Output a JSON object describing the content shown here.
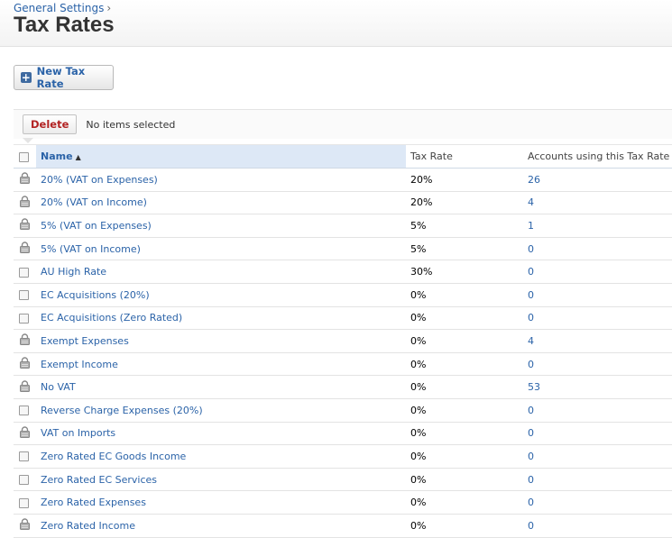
{
  "breadcrumb": {
    "parent": "General Settings",
    "separator": "›"
  },
  "page": {
    "title": "Tax Rates"
  },
  "actions": {
    "new_label": "New Tax Rate",
    "new_icon": "plus-icon"
  },
  "toolbar": {
    "delete_label": "Delete",
    "selection_status": "No items selected"
  },
  "table": {
    "columns": [
      "Name",
      "Tax Rate",
      "Accounts using this Tax Rate"
    ],
    "sort": {
      "column": "Name",
      "direction": "ascending"
    },
    "rows": [
      {
        "name": "20% (VAT on Expenses)",
        "rate": "20%",
        "accounts": "26",
        "locked": true
      },
      {
        "name": "20% (VAT on Income)",
        "rate": "20%",
        "accounts": "4",
        "locked": true
      },
      {
        "name": "5% (VAT on Expenses)",
        "rate": "5%",
        "accounts": "1",
        "locked": true
      },
      {
        "name": "5% (VAT on Income)",
        "rate": "5%",
        "accounts": "0",
        "locked": true
      },
      {
        "name": "AU High Rate",
        "rate": "30%",
        "accounts": "0",
        "locked": false
      },
      {
        "name": "EC Acquisitions (20%)",
        "rate": "0%",
        "accounts": "0",
        "locked": false
      },
      {
        "name": "EC Acquisitions (Zero Rated)",
        "rate": "0%",
        "accounts": "0",
        "locked": false
      },
      {
        "name": "Exempt Expenses",
        "rate": "0%",
        "accounts": "4",
        "locked": true
      },
      {
        "name": "Exempt Income",
        "rate": "0%",
        "accounts": "0",
        "locked": true
      },
      {
        "name": "No VAT",
        "rate": "0%",
        "accounts": "53",
        "locked": true
      },
      {
        "name": "Reverse Charge Expenses (20%)",
        "rate": "0%",
        "accounts": "0",
        "locked": false
      },
      {
        "name": "VAT on Imports",
        "rate": "0%",
        "accounts": "0",
        "locked": true
      },
      {
        "name": "Zero Rated EC Goods Income",
        "rate": "0%",
        "accounts": "0",
        "locked": false
      },
      {
        "name": "Zero Rated EC Services",
        "rate": "0%",
        "accounts": "0",
        "locked": false
      },
      {
        "name": "Zero Rated Expenses",
        "rate": "0%",
        "accounts": "0",
        "locked": false
      },
      {
        "name": "Zero Rated Income",
        "rate": "0%",
        "accounts": "0",
        "locked": true
      }
    ]
  },
  "colors": {
    "link": "#2b63a8",
    "delete": "#b22222",
    "header_highlight": "#dde8f6"
  }
}
